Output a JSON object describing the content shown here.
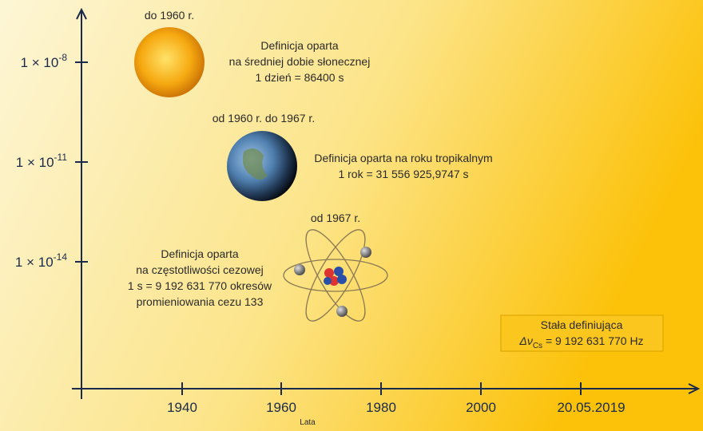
{
  "axis": {
    "y_ticks": [
      {
        "base": "1 × 10",
        "exponent": "-8"
      },
      {
        "base": "1 × 10",
        "exponent": "-11"
      },
      {
        "base": "1 × 10",
        "exponent": "-14"
      }
    ],
    "x_ticks": [
      "1940",
      "1960",
      "1980",
      "2000",
      "20.05.2019"
    ],
    "x_label": "Lata"
  },
  "eras": [
    {
      "period": "do 1960 r.",
      "definition": [
        "Definicja oparta",
        "na średniej dobie słonecznej",
        "1 dzień = 86400 s"
      ]
    },
    {
      "period": "od 1960 r. do 1967 r.",
      "definition": [
        "Definicja oparta na roku tropikalnym",
        "1 rok = 31 556 925,9747 s"
      ]
    },
    {
      "period": "od 1967 r.",
      "definition": [
        "Definicja oparta",
        "na częstotliwości cezowej",
        "1 s = 9 192 631 770 okresów",
        "promieniowania cezu 133"
      ]
    }
  ],
  "constant": {
    "title": "Stała definiująca",
    "symbol": "Δν",
    "subscript": "Cs",
    "value": " = 9 192 631 770 Hz"
  }
}
